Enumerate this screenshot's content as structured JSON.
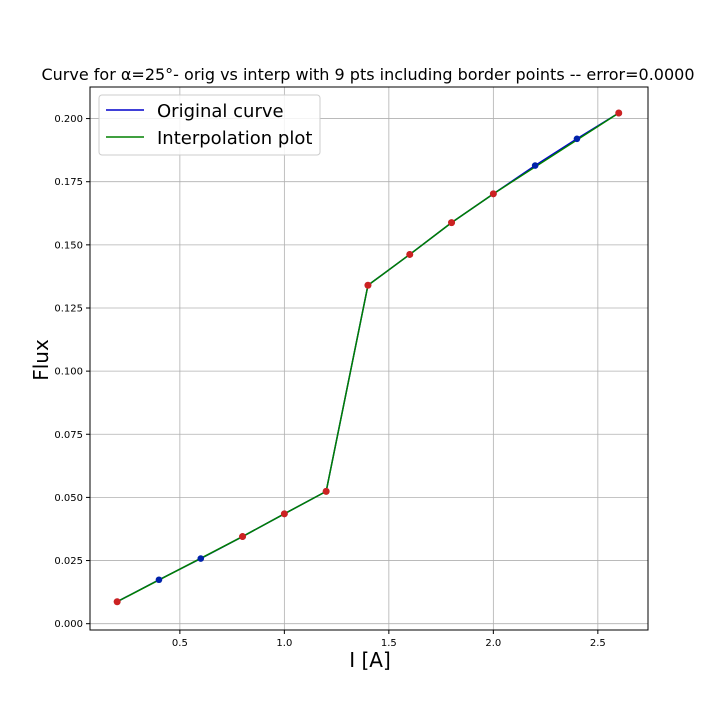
{
  "chart_data": {
    "type": "line",
    "title": "Curve for α=25°- orig vs interp with 9 pts including border points -- error=0.0000",
    "xlabel": "I [A]",
    "ylabel": "Flux",
    "xlim": [
      0.07,
      2.74
    ],
    "ylim": [
      -0.0025,
      0.2125
    ],
    "xticks": [
      0.5,
      1.0,
      1.5,
      2.0,
      2.5
    ],
    "xtick_labels": [
      "0.5",
      "1.0",
      "1.5",
      "2.0",
      "2.5"
    ],
    "yticks": [
      0.0,
      0.025,
      0.05,
      0.075,
      0.1,
      0.125,
      0.15,
      0.175,
      0.2
    ],
    "ytick_labels": [
      "0.000",
      "0.025",
      "0.050",
      "0.075",
      "0.100",
      "0.125",
      "0.150",
      "0.175",
      "0.200"
    ],
    "grid": true,
    "legend_position": "top-left",
    "series": [
      {
        "name": "Original curve",
        "color": "#0000cc",
        "x": [
          0.2,
          0.4,
          0.6,
          0.8,
          1.0,
          1.2,
          1.4,
          1.6,
          1.8,
          2.0,
          2.2,
          2.4,
          2.6
        ],
        "y": [
          0.0087,
          0.0174,
          0.0258,
          0.0345,
          0.0435,
          0.0524,
          0.134,
          0.1462,
          0.1588,
          0.1702,
          0.1814,
          0.192,
          0.2022
        ]
      },
      {
        "name": "Interpolation plot",
        "color": "#008000",
        "x": [
          0.2,
          0.8,
          1.0,
          1.2,
          1.4,
          1.6,
          1.8,
          2.0,
          2.6
        ],
        "y": [
          0.0087,
          0.0345,
          0.0435,
          0.0524,
          0.134,
          0.1462,
          0.1588,
          0.1702,
          0.2022
        ]
      }
    ],
    "interpolation_points_color": "#cc2222",
    "original_points_color": "#0022aa"
  }
}
